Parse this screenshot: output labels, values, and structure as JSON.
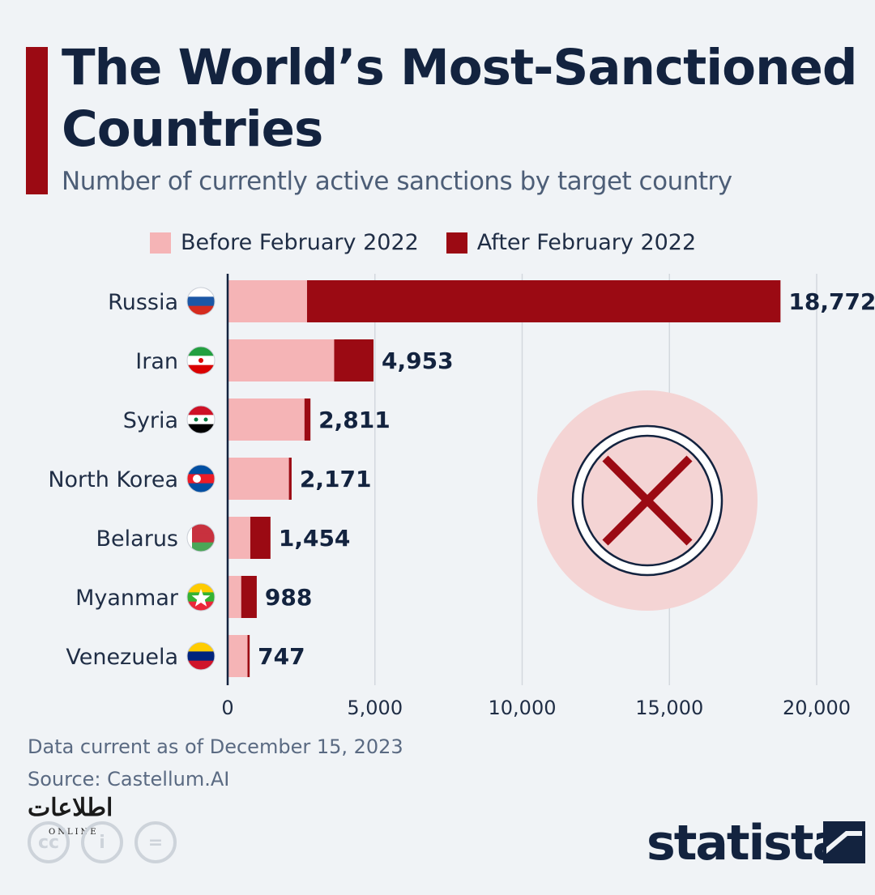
{
  "title": "The World’s Most-Sanctioned Countries",
  "subtitle": "Number of currently active sanctions by target country",
  "legend": {
    "before": "Before February 2022",
    "after": "After February 2022"
  },
  "colors": {
    "before": "#f5b4b6",
    "after": "#9b0a13",
    "grid": "#d3d8de",
    "stamp_bg": "#f4d4d4"
  },
  "chart_data": {
    "type": "bar",
    "orientation": "horizontal",
    "stacked": true,
    "categories": [
      "Russia",
      "Iran",
      "Syria",
      "North Korea",
      "Belarus",
      "Myanmar",
      "Venezuela"
    ],
    "series": [
      {
        "name": "Before February 2022",
        "values": [
          2695,
          3616,
          2608,
          2080,
          769,
          460,
          674
        ]
      },
      {
        "name": "After February 2022",
        "values": [
          16077,
          1337,
          203,
          91,
          685,
          528,
          73
        ]
      }
    ],
    "totals": [
      18772,
      4953,
      2811,
      2171,
      1454,
      988,
      747
    ],
    "total_labels": [
      "18,772",
      "4,953",
      "2,811",
      "2,171",
      "1,454",
      "988",
      "747"
    ],
    "flags": [
      "russia-flag",
      "iran-flag",
      "syria-flag",
      "north-korea-flag",
      "belarus-flag",
      "myanmar-flag",
      "venezuela-flag"
    ],
    "xticks": [
      0,
      5000,
      10000,
      15000,
      20000
    ],
    "xtick_labels": [
      "0",
      "5,000",
      "10,000",
      "15,000",
      "20,000"
    ],
    "xlim": [
      0,
      20000
    ],
    "grid": true,
    "legend_position": "top"
  },
  "footer": {
    "date": "Data current as of December 15, 2023",
    "source": "Source: Castellum.AI"
  },
  "brand": "statista",
  "watermark": "اطلاعات",
  "watermark_sub": "ONLINE",
  "cc_icons": [
    "cc",
    "i",
    "="
  ]
}
